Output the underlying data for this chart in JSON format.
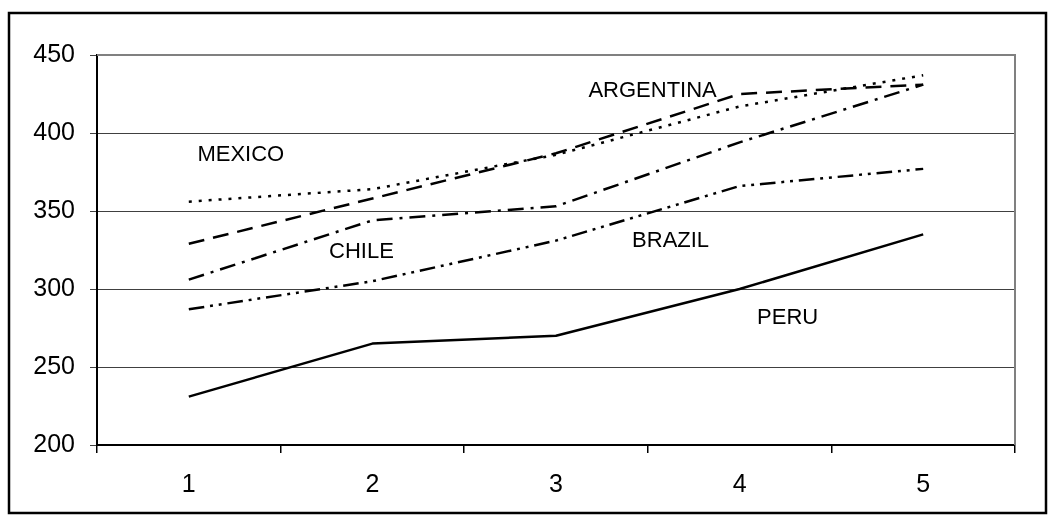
{
  "chart_data": {
    "type": "line",
    "categories": [
      "1",
      "2",
      "3",
      "4",
      "5"
    ],
    "ylim": [
      200,
      450
    ],
    "yticks": [
      200,
      250,
      300,
      350,
      400,
      450
    ],
    "grid": "y",
    "legend": false,
    "marker": "none",
    "series": [
      {
        "name": "ARGENTINA",
        "color": "#000000",
        "line_style": "dashed",
        "values": [
          329,
          358,
          387,
          425,
          431
        ]
      },
      {
        "name": "BRAZIL",
        "color": "#000000",
        "line_style": "dashdotdot",
        "values": [
          287,
          305,
          331,
          366,
          377
        ]
      },
      {
        "name": "CHILE",
        "color": "#000000",
        "line_style": "dashdot",
        "values": [
          306,
          344,
          353,
          394,
          431
        ]
      },
      {
        "name": "MEXICO",
        "color": "#000000",
        "line_style": "dotted",
        "values": [
          356,
          364,
          386,
          417,
          437
        ]
      },
      {
        "name": "PERU",
        "color": "#000000",
        "line_style": "solid",
        "values": [
          231,
          265,
          270,
          300,
          335
        ]
      }
    ]
  }
}
